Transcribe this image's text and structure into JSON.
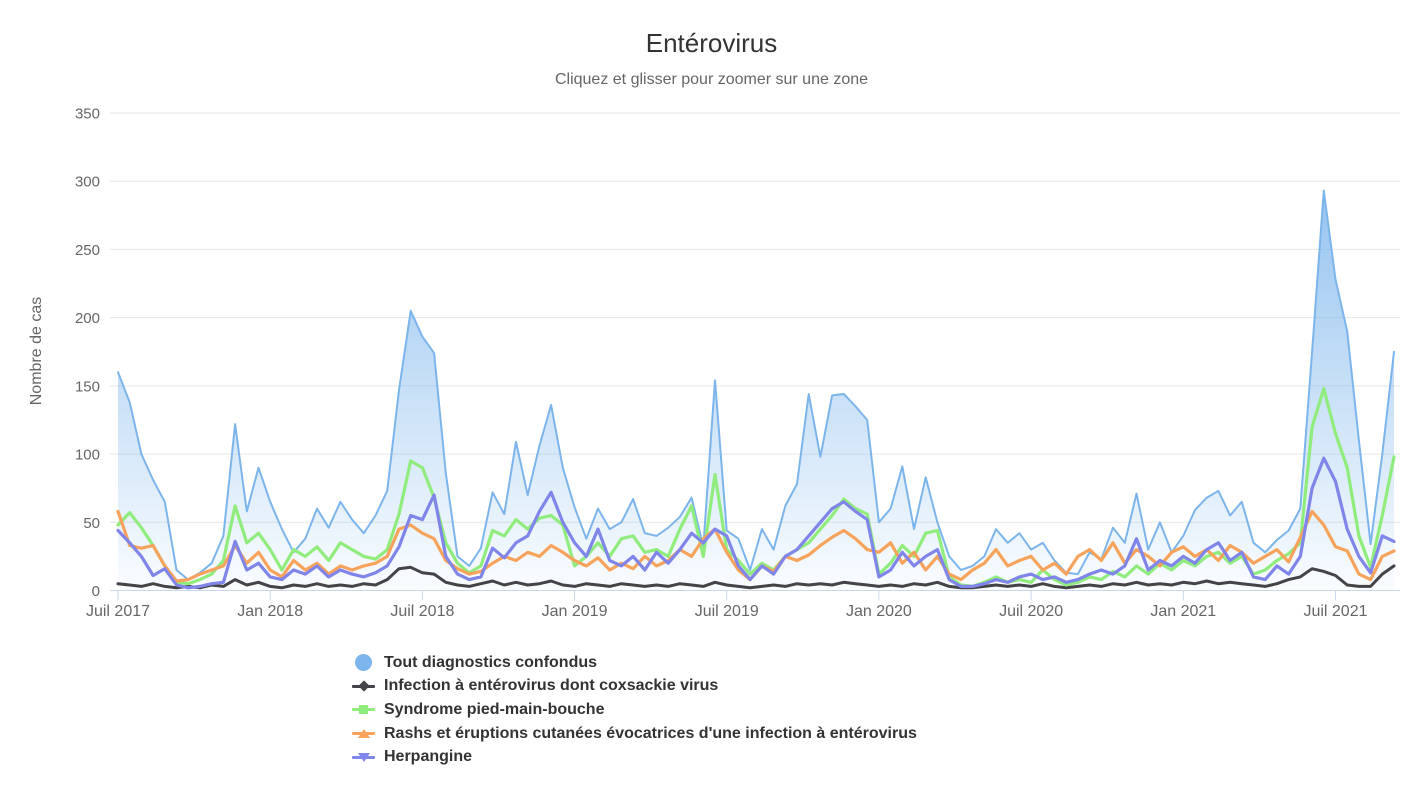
{
  "title": "Entérovirus",
  "subtitle": "Cliquez et glisser pour zoomer sur une zone",
  "chart_data": {
    "type": "line",
    "title": "Entérovirus",
    "subtitle": "Cliquez et glisser pour zoomer sur une zone",
    "grid": true,
    "legend_position": "bottom-left-stacked",
    "x_axis": {
      "tick_labels": [
        "Juil 2017",
        "Jan 2018",
        "Juil 2018",
        "Jan 2019",
        "Juil 2019",
        "Jan 2020",
        "Juil 2020",
        "Jan 2021",
        "Juil 2021"
      ],
      "tick_indices": [
        0,
        13,
        26,
        39,
        52,
        65,
        78,
        91,
        104
      ],
      "points_per_half_year": 13
    },
    "y_axis": {
      "title": "Nombre de cas",
      "ticks": [
        0,
        50,
        100,
        150,
        200,
        250,
        300,
        350
      ],
      "range": [
        0,
        350
      ]
    },
    "colors": {
      "grid_line": "#e6e6e6",
      "axis_line": "#ccd6eb",
      "axis_label": "#666666",
      "title_text": "#333333",
      "subtitle_text": "#666666",
      "legend_text": "#333333"
    },
    "series": [
      {
        "name": "Tout diagnostics confondus",
        "type": "area",
        "color": "#7cb5ec",
        "marker": "circle",
        "values": [
          160,
          138,
          100,
          81,
          65,
          15,
          8,
          13,
          20,
          40,
          122,
          58,
          90,
          65,
          45,
          28,
          38,
          60,
          46,
          65,
          52,
          42,
          55,
          73,
          147,
          205,
          186,
          174,
          86,
          25,
          18,
          31,
          72,
          56,
          109,
          70,
          106,
          136,
          90,
          61,
          38,
          60,
          45,
          50,
          67,
          42,
          40,
          46,
          54,
          68,
          32,
          154,
          44,
          38,
          15,
          45,
          30,
          62,
          78,
          144,
          98,
          143,
          144,
          135,
          125,
          50,
          60,
          91,
          45,
          83,
          50,
          25,
          15,
          18,
          25,
          45,
          35,
          42,
          30,
          35,
          22,
          13,
          12,
          28,
          23,
          46,
          35,
          71,
          30,
          50,
          28,
          40,
          59,
          68,
          73,
          55,
          65,
          35,
          28,
          37,
          44,
          60,
          175,
          293,
          228,
          190,
          110,
          34,
          100,
          175
        ]
      },
      {
        "name": "Infection à entérovirus dont coxsackie virus",
        "type": "line",
        "color": "#434348",
        "marker": "diamond",
        "values": [
          5,
          4,
          3,
          5,
          3,
          2,
          3,
          2,
          4,
          3,
          8,
          4,
          6,
          3,
          2,
          4,
          3,
          5,
          3,
          4,
          3,
          5,
          4,
          8,
          16,
          17,
          13,
          12,
          6,
          4,
          3,
          5,
          7,
          4,
          6,
          4,
          5,
          7,
          4,
          3,
          5,
          4,
          3,
          5,
          4,
          3,
          4,
          3,
          5,
          4,
          3,
          6,
          4,
          3,
          2,
          3,
          4,
          3,
          5,
          4,
          5,
          4,
          6,
          5,
          4,
          3,
          4,
          3,
          5,
          4,
          6,
          3,
          2,
          2,
          3,
          4,
          3,
          4,
          3,
          5,
          3,
          2,
          3,
          4,
          3,
          5,
          4,
          6,
          4,
          5,
          4,
          6,
          5,
          7,
          5,
          6,
          5,
          4,
          3,
          5,
          8,
          10,
          16,
          14,
          11,
          4,
          3,
          3,
          12,
          18
        ]
      },
      {
        "name": "Syndrome pied-main-bouche",
        "type": "line",
        "color": "#90ed7d",
        "marker": "square",
        "values": [
          48,
          57,
          46,
          33,
          18,
          6,
          5,
          8,
          12,
          22,
          62,
          35,
          42,
          30,
          15,
          30,
          25,
          32,
          22,
          35,
          30,
          25,
          23,
          30,
          56,
          95,
          90,
          68,
          35,
          20,
          13,
          18,
          44,
          40,
          52,
          45,
          53,
          55,
          48,
          18,
          25,
          35,
          25,
          38,
          40,
          28,
          30,
          25,
          45,
          62,
          25,
          85,
          30,
          22,
          12,
          20,
          15,
          25,
          30,
          35,
          45,
          55,
          67,
          60,
          56,
          12,
          20,
          33,
          25,
          42,
          44,
          10,
          4,
          3,
          6,
          10,
          6,
          8,
          6,
          15,
          8,
          4,
          6,
          10,
          8,
          14,
          10,
          18,
          12,
          20,
          15,
          22,
          18,
          25,
          28,
          20,
          25,
          12,
          15,
          22,
          27,
          35,
          120,
          148,
          115,
          90,
          40,
          17,
          55,
          98
        ]
      },
      {
        "name": "Rashs et éruptions cutanées évocatrices d'une infection à entérovirus",
        "type": "line",
        "color": "#f7a35c",
        "marker": "triangle-up",
        "values": [
          58,
          33,
          31,
          33,
          18,
          7,
          8,
          12,
          15,
          18,
          33,
          20,
          28,
          15,
          10,
          22,
          15,
          20,
          12,
          18,
          15,
          18,
          20,
          25,
          45,
          48,
          42,
          38,
          22,
          16,
          12,
          14,
          20,
          25,
          22,
          28,
          25,
          33,
          28,
          22,
          18,
          24,
          15,
          20,
          16,
          25,
          18,
          22,
          30,
          25,
          38,
          45,
          28,
          15,
          8,
          18,
          14,
          25,
          22,
          26,
          33,
          39,
          44,
          38,
          30,
          28,
          35,
          20,
          28,
          15,
          25,
          12,
          8,
          15,
          20,
          30,
          18,
          22,
          25,
          15,
          20,
          12,
          25,
          30,
          22,
          35,
          20,
          30,
          25,
          18,
          28,
          32,
          25,
          30,
          22,
          33,
          28,
          20,
          25,
          30,
          21,
          39,
          58,
          48,
          32,
          29,
          12,
          8,
          25,
          29
        ]
      },
      {
        "name": "Herpangine",
        "type": "line",
        "color": "#8085e9",
        "marker": "triangle-down",
        "values": [
          44,
          35,
          25,
          11,
          16,
          4,
          2,
          3,
          5,
          6,
          36,
          15,
          20,
          10,
          8,
          15,
          12,
          18,
          10,
          15,
          12,
          10,
          13,
          18,
          32,
          55,
          52,
          70,
          25,
          12,
          8,
          10,
          31,
          24,
          35,
          40,
          58,
          72,
          50,
          35,
          25,
          45,
          22,
          18,
          25,
          15,
          28,
          20,
          30,
          42,
          35,
          45,
          40,
          18,
          8,
          18,
          12,
          25,
          30,
          40,
          50,
          60,
          65,
          58,
          52,
          10,
          15,
          28,
          18,
          25,
          30,
          8,
          3,
          3,
          5,
          8,
          6,
          10,
          12,
          8,
          10,
          6,
          8,
          12,
          15,
          12,
          18,
          38,
          15,
          22,
          18,
          25,
          20,
          30,
          35,
          22,
          28,
          10,
          8,
          18,
          12,
          25,
          75,
          97,
          80,
          45,
          25,
          13,
          40,
          36
        ]
      }
    ]
  }
}
